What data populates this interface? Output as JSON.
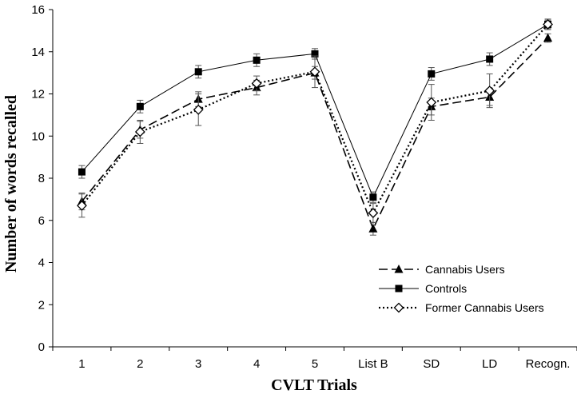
{
  "chart_data": {
    "type": "line",
    "title": "",
    "xlabel": "CVLT Trials",
    "ylabel": "Number of words recalled",
    "categories": [
      "1",
      "2",
      "3",
      "4",
      "5",
      "List B",
      "SD",
      "LD",
      "Recogn."
    ],
    "ylim": [
      0,
      16
    ],
    "yticks": [
      0,
      2,
      4,
      6,
      8,
      10,
      12,
      14,
      16
    ],
    "grid": false,
    "legend_position": "bottom-right",
    "series": [
      {
        "name": "Cannabis Users",
        "style": "dashed",
        "marker": "triangle",
        "color": "#000000",
        "values": [
          6.9,
          10.3,
          11.75,
          12.3,
          13.0,
          5.6,
          11.4,
          11.85,
          14.65
        ],
        "errors": [
          0.4,
          0.4,
          0.35,
          0.35,
          0.3,
          0.3,
          0.4,
          0.4,
          0.2
        ]
      },
      {
        "name": "Controls",
        "style": "solid",
        "marker": "square",
        "color": "#000000",
        "values": [
          8.3,
          11.4,
          13.05,
          13.6,
          13.9,
          7.1,
          12.95,
          13.65,
          15.3
        ],
        "errors": [
          0.3,
          0.3,
          0.3,
          0.3,
          0.25,
          0.25,
          0.3,
          0.3,
          0.25
        ]
      },
      {
        "name": "Former Cannabis Users",
        "style": "dotted",
        "marker": "diamond-open",
        "color": "#000000",
        "values": [
          6.7,
          10.2,
          11.25,
          12.5,
          13.05,
          6.35,
          11.6,
          12.15,
          15.3
        ],
        "errors": [
          0.55,
          0.55,
          0.75,
          0.35,
          0.75,
          0.45,
          0.85,
          0.8,
          0.2
        ]
      }
    ]
  }
}
